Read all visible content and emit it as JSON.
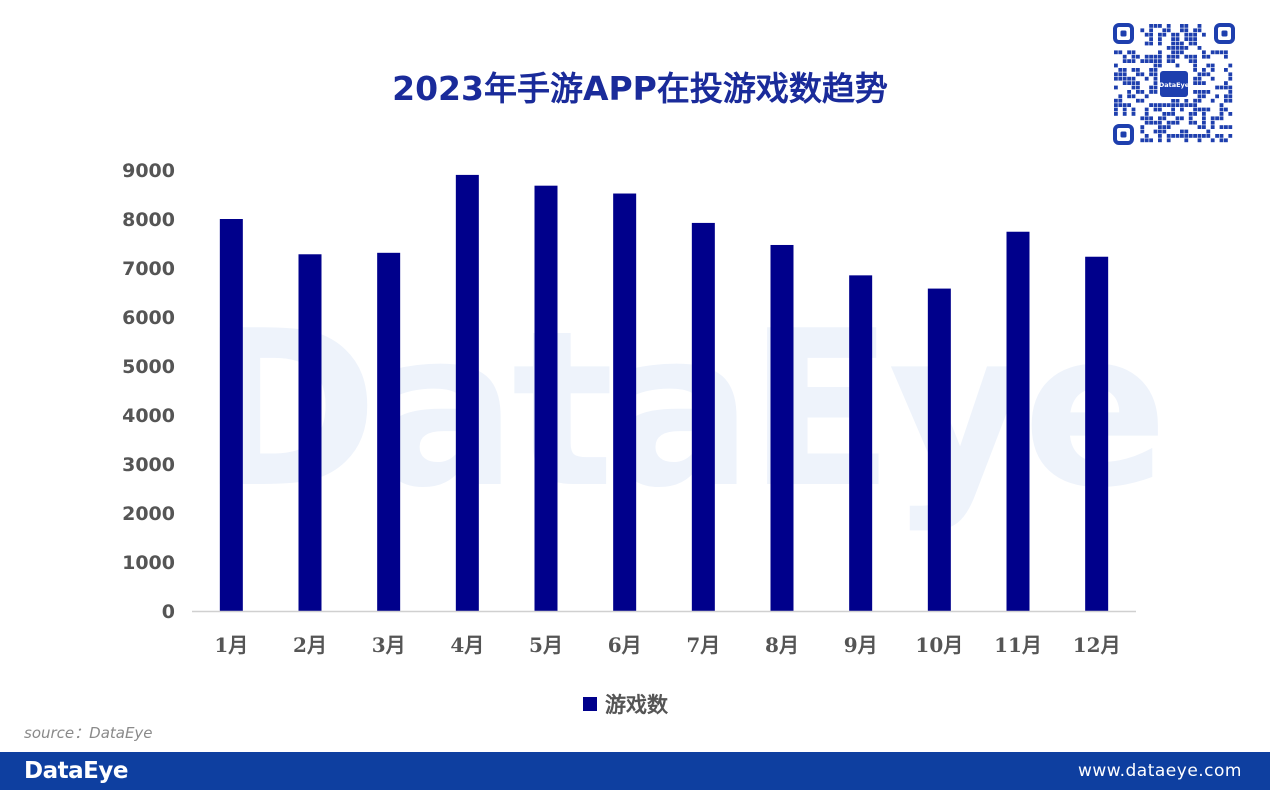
{
  "watermark": "DataEye",
  "qr_center": "DataEye",
  "chart_data": {
    "type": "bar",
    "title": "2023年手游APP在投游戏数趋势",
    "xlabel": "",
    "ylabel": "",
    "categories": [
      "1月",
      "2月",
      "3月",
      "4月",
      "5月",
      "6月",
      "7月",
      "8月",
      "9月",
      "10月",
      "11月",
      "12月"
    ],
    "series": [
      {
        "name": "游戏数",
        "values": [
          8000,
          7280,
          7310,
          8900,
          8680,
          8520,
          7920,
          7470,
          6850,
          6580,
          7740,
          7230
        ],
        "color": "#00008b"
      }
    ],
    "ylim": [
      0,
      9000
    ],
    "yticks": [
      0,
      1000,
      2000,
      3000,
      4000,
      5000,
      6000,
      7000,
      8000,
      9000
    ],
    "grid": false,
    "legend_position": "bottom"
  },
  "source": "source：DataEye",
  "footer": {
    "brand": "DataEye",
    "url": "www.dataeye.com"
  }
}
